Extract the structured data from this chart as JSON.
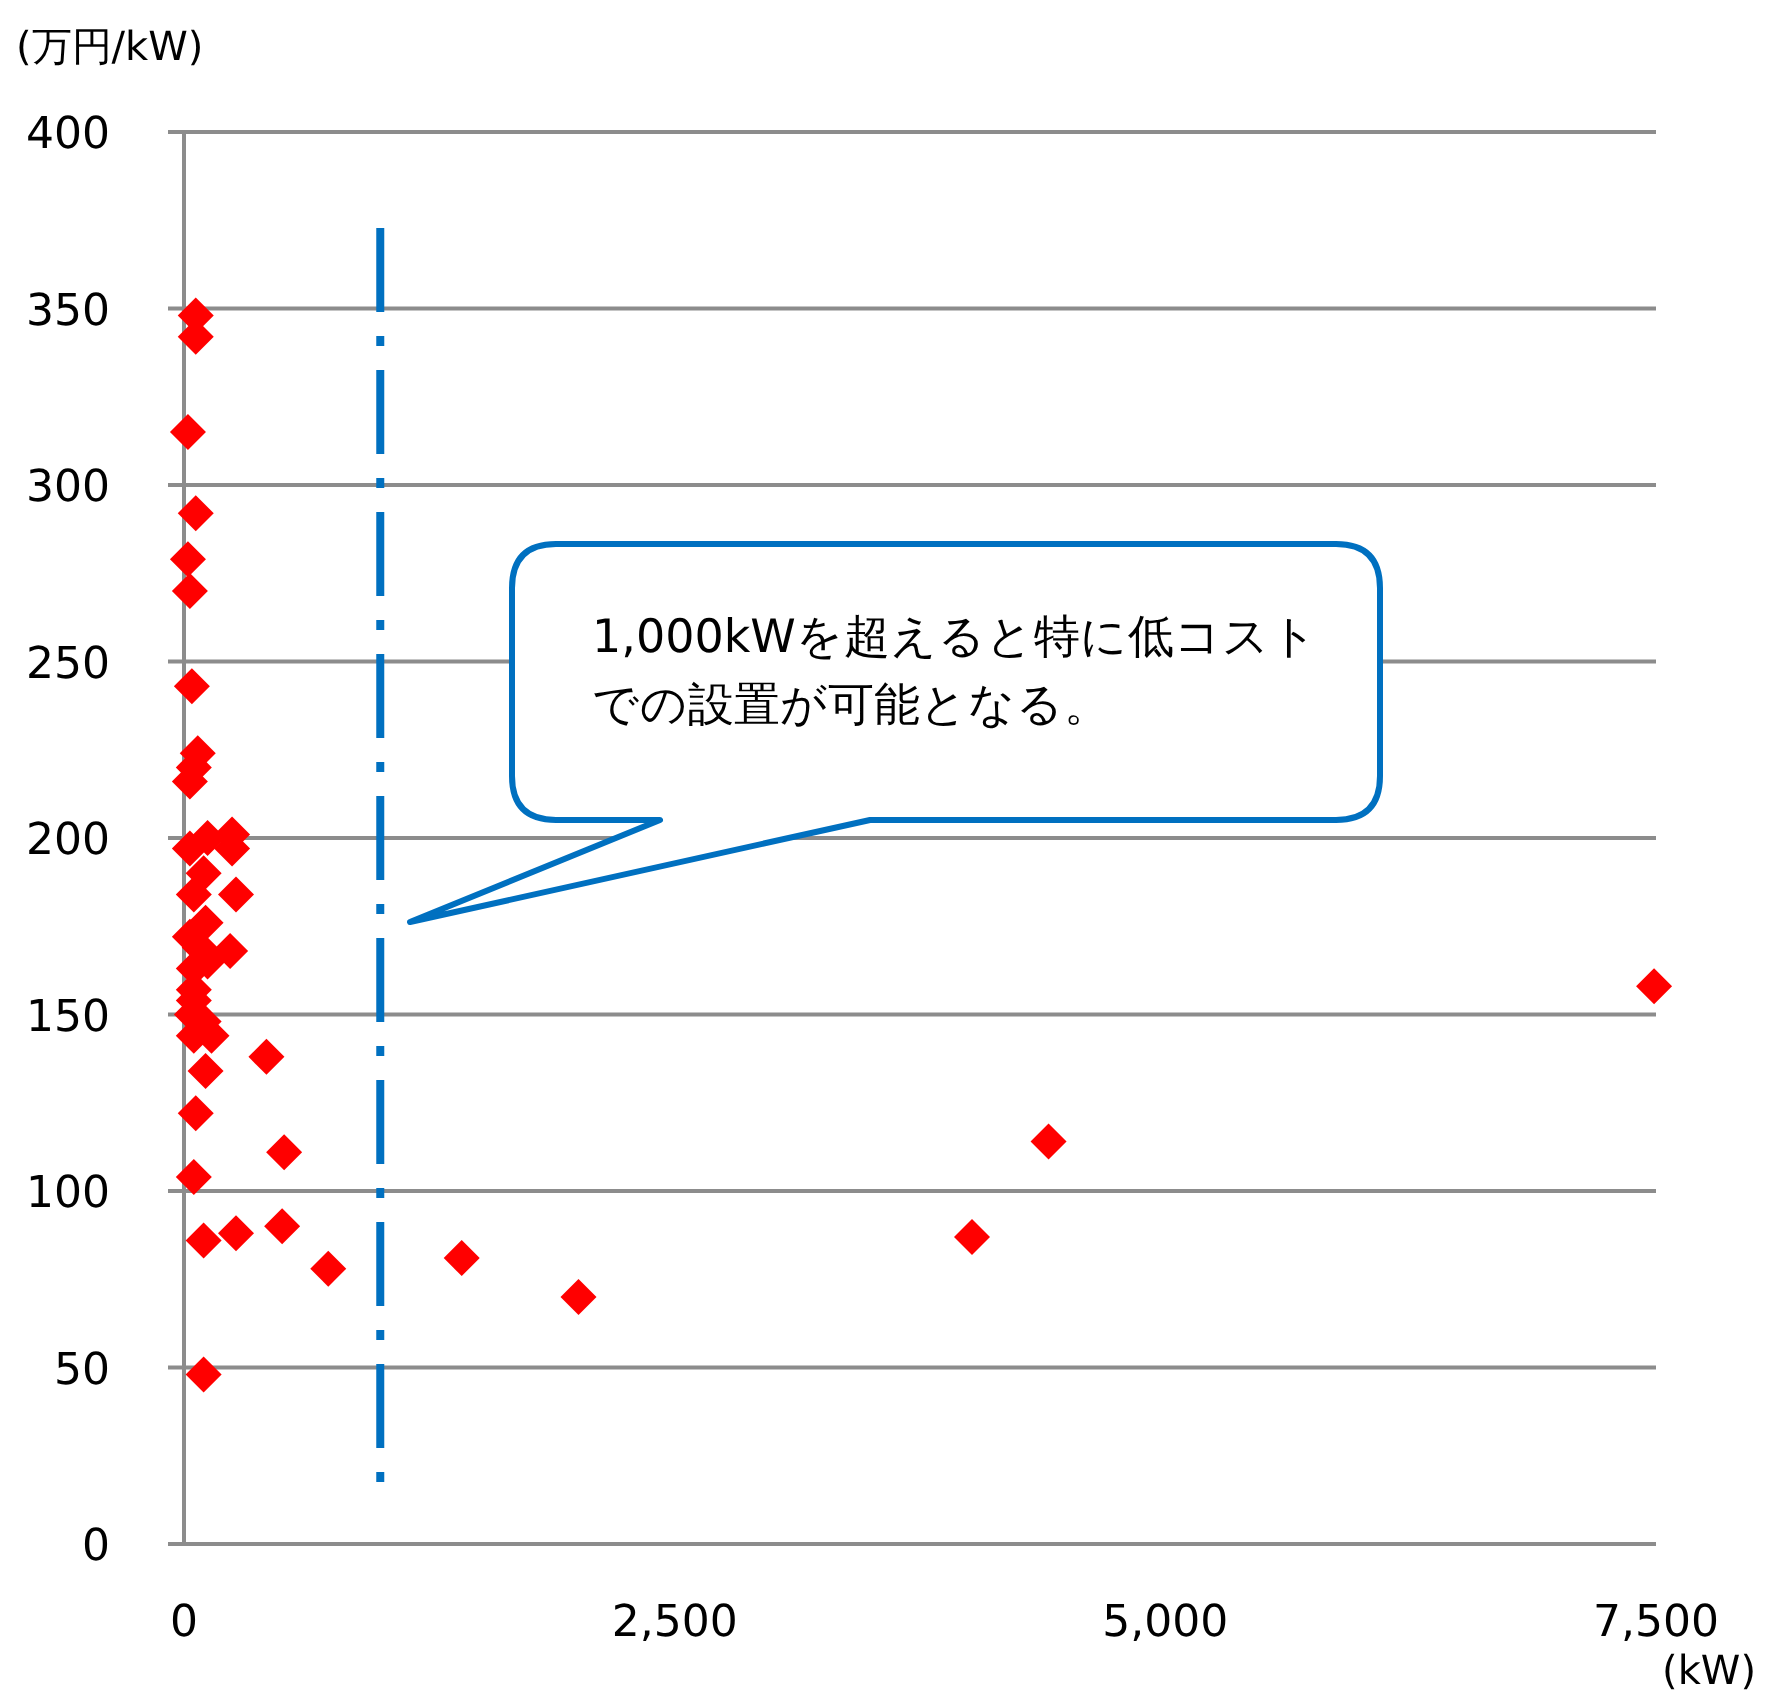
{
  "chart_data": {
    "type": "scatter",
    "xlabel": "(kW)",
    "ylabel": "(万円/kW)",
    "x": [
      60,
      60,
      20,
      60,
      20,
      30,
      40,
      70,
      50,
      30,
      120,
      245,
      245,
      30,
      100,
      265,
      50,
      110,
      30,
      80,
      235,
      120,
      50,
      50,
      50,
      40,
      100,
      140,
      50,
      110,
      420,
      60,
      510,
      50,
      100,
      265,
      500,
      735,
      1415,
      2010,
      100,
      4015,
      4405,
      7490
    ],
    "values": [
      348,
      342,
      315,
      292,
      279,
      270,
      243,
      224,
      220,
      216,
      200,
      201,
      197,
      197,
      190,
      184,
      184,
      176,
      172,
      169,
      168,
      165,
      163,
      157,
      154,
      150,
      148,
      144,
      144,
      134,
      138,
      122,
      111,
      104,
      86,
      88,
      90,
      78,
      81,
      70,
      48,
      87,
      114,
      158
    ],
    "color": "#ff0000",
    "marker": "diamond",
    "grid": "y",
    "xlim": [
      0,
      7500
    ],
    "xticks": [
      0,
      {
        "value": 2500,
        "label": "2,500"
      },
      {
        "value": 5000,
        "label": "5,000"
      },
      {
        "value": 7500,
        "label": "7,500"
      }
    ],
    "ylim": [
      0,
      400
    ],
    "yticks": [
      0,
      50,
      100,
      150,
      200,
      250,
      300,
      350,
      400
    ],
    "ref_lines": [
      {
        "axis": "x",
        "value": 1000,
        "color": "#0070c0",
        "line_style": "dashdot"
      }
    ],
    "annotations": [
      "1,000kWを超えると特に低コストでの設置が可能となる。"
    ]
  }
}
